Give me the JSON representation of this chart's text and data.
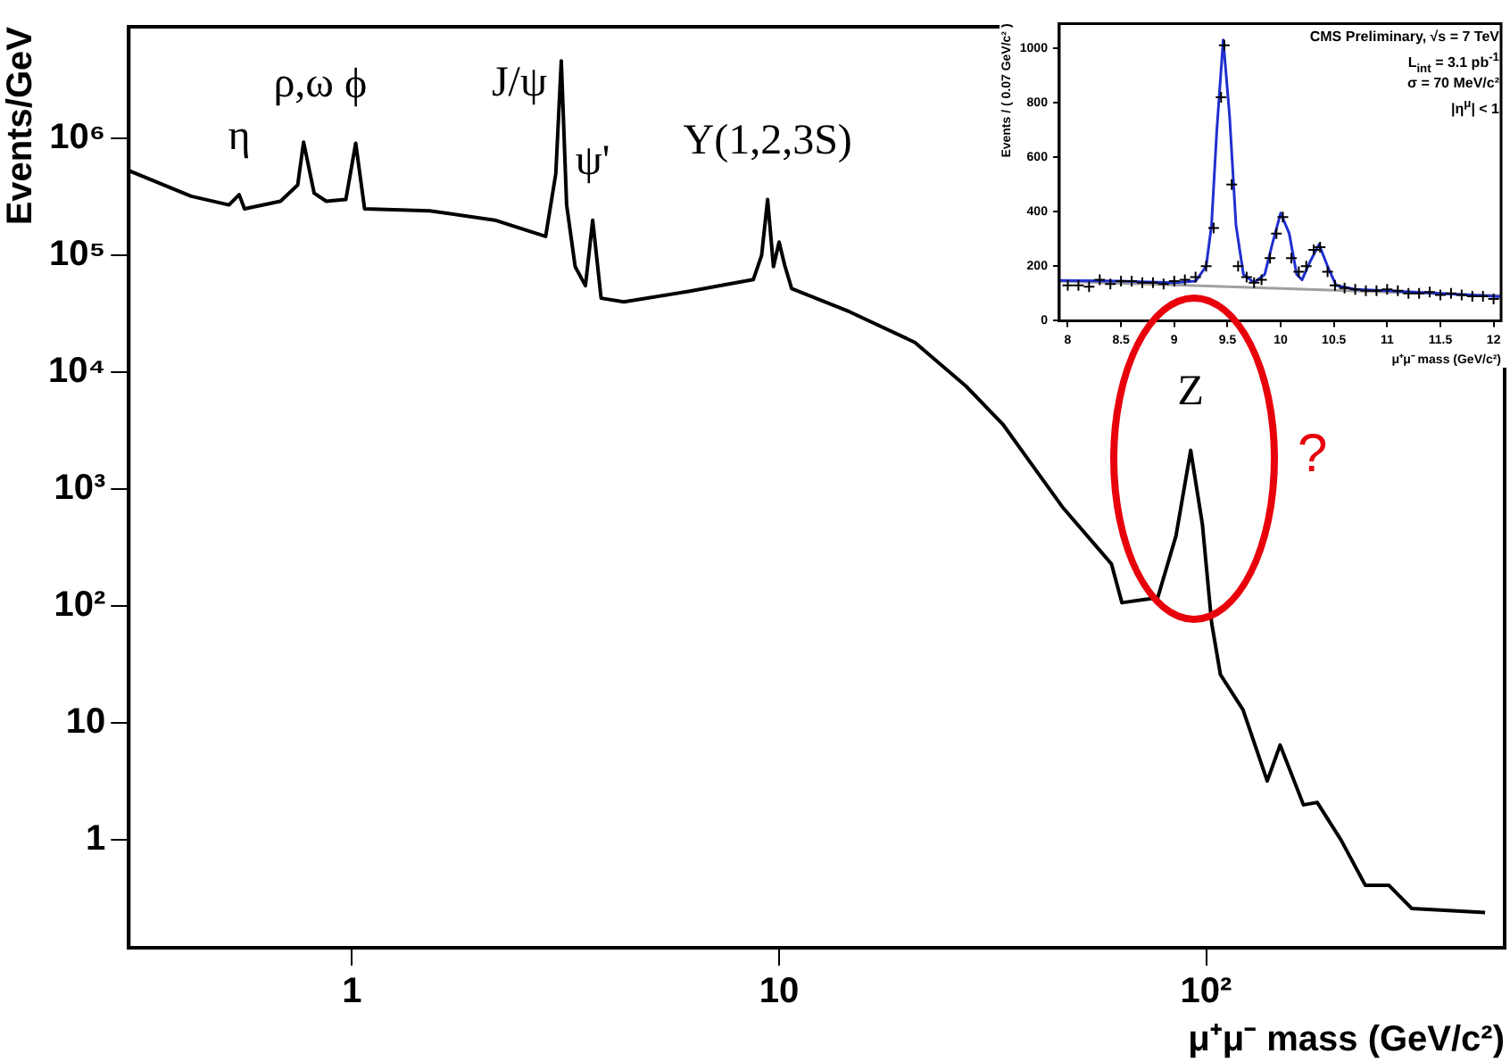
{
  "chart_data": [
    {
      "type": "line",
      "xlabel": "μ⁺μ⁻ mass (GeV/c²)",
      "ylabel": "Events/GeV",
      "log": "xy",
      "xlim": [
        0.3,
        500
      ],
      "ylim": [
        0.12,
        9000000
      ],
      "xticks": [
        1,
        10,
        {
          "value": 100,
          "label": "10²"
        }
      ],
      "yticks": [
        1,
        10,
        {
          "value": 100,
          "label": "10²"
        },
        {
          "value": 1000,
          "label": "10³"
        },
        {
          "value": 10000,
          "label": "10⁴"
        },
        {
          "value": 100000,
          "label": "10⁵"
        },
        {
          "value": 1000000,
          "label": "10⁶"
        }
      ],
      "grid": false,
      "x": [
        0.3,
        0.42,
        0.515,
        0.544,
        0.56,
        0.68,
        0.746,
        0.77,
        0.815,
        0.87,
        0.967,
        1.02,
        1.07,
        1.52,
        2.16,
        2.84,
        3.0,
        3.09,
        3.18,
        3.33,
        3.52,
        3.66,
        3.83,
        4.33,
        6.1,
        8.7,
        9.1,
        9.4,
        9.7,
        10.0,
        10.3,
        10.7,
        14.6,
        20.8,
        27.4,
        33.4,
        46,
        60,
        63.5,
        77,
        85,
        92,
        98,
        103,
        108,
        122,
        139,
        149,
        169,
        182,
        207,
        236,
        268,
        303,
        450
      ],
      "series": [
        {
          "color": "#000000",
          "values": [
            530000,
            320000,
            270000,
            330000,
            250000,
            290000,
            400000,
            930000,
            340000,
            290000,
            300000,
            910000,
            250000,
            240000,
            200000,
            145000,
            500000,
            4600000,
            270000,
            80000,
            55000,
            200000,
            43000,
            40000,
            49000,
            62000,
            100000,
            300000,
            80000,
            130000,
            83000,
            52000,
            33000,
            18000,
            7600,
            3600,
            710,
            230,
            107,
            118,
            400,
            2150,
            500,
            72,
            26,
            13,
            3.2,
            6.5,
            2.0,
            2.1,
            1.0,
            0.41,
            0.41,
            0.26,
            0.24
          ]
        }
      ],
      "annotations": [
        {
          "text": "η",
          "x": 0.544,
          "y": 330000
        },
        {
          "text": "ρ,ω",
          "x": 0.77,
          "y": 930000
        },
        {
          "text": "ϕ",
          "x": 1.02,
          "y": 910000
        },
        {
          "text": "J/ψ",
          "x": 3.09,
          "y": 4600000
        },
        {
          "text": "ψ'",
          "x": 3.66,
          "y": 200000
        },
        {
          "text": "Υ(1,2,3S)",
          "x": 9.4,
          "y": 300000
        },
        {
          "text": "Z",
          "x": 92,
          "y": 2150
        },
        "?"
      ]
    },
    {
      "type": "scatter",
      "xlabel": "μ⁺μ⁻ mass (GeV/c²)",
      "ylabel": "Events / ( 0.07 GeV/c² )",
      "xlim": [
        7.92,
        12.07
      ],
      "ylim": [
        0,
        1090
      ],
      "xticks": [
        8,
        8.5,
        9,
        9.5,
        10,
        10.5,
        11,
        11.5,
        12
      ],
      "yticks": [
        0,
        200,
        400,
        600,
        800,
        1000
      ],
      "grid": false,
      "series": [
        {
          "type": "scatter",
          "marker": "cross",
          "color": "#000000",
          "x": [
            8.0,
            8.1,
            8.2,
            8.3,
            8.4,
            8.5,
            8.6,
            8.7,
            8.8,
            8.9,
            9.0,
            9.1,
            9.2,
            9.3,
            9.37,
            9.44,
            9.47,
            9.54,
            9.6,
            9.68,
            9.75,
            9.82,
            9.9,
            9.96,
            10.02,
            10.1,
            10.17,
            10.24,
            10.31,
            10.37,
            10.44,
            10.51,
            10.6,
            10.7,
            10.8,
            10.9,
            11.0,
            11.1,
            11.2,
            11.3,
            11.4,
            11.5,
            11.6,
            11.7,
            11.8,
            11.9,
            12.0
          ],
          "values": [
            130,
            130,
            125,
            150,
            135,
            145,
            145,
            140,
            140,
            135,
            145,
            150,
            160,
            200,
            340,
            820,
            1010,
            500,
            200,
            160,
            140,
            150,
            230,
            320,
            380,
            230,
            180,
            200,
            260,
            270,
            180,
            130,
            120,
            115,
            110,
            110,
            115,
            110,
            100,
            100,
            105,
            95,
            100,
            95,
            90,
            90,
            80
          ]
        },
        {
          "type": "line",
          "color": "#1f2fcf",
          "x": [
            7.92,
            8.5,
            9.0,
            9.2,
            9.3,
            9.35,
            9.4,
            9.46,
            9.52,
            9.58,
            9.65,
            9.75,
            9.85,
            9.92,
            10.0,
            10.08,
            10.15,
            10.2,
            10.28,
            10.36,
            10.44,
            10.52,
            10.7,
            11.0,
            11.5,
            12.0,
            12.07
          ],
          "values": [
            148,
            145,
            140,
            145,
            200,
            350,
            700,
            1030,
            750,
            350,
            170,
            140,
            170,
            280,
            395,
            320,
            170,
            150,
            220,
            280,
            200,
            130,
            115,
            110,
            100,
            90,
            88
          ]
        },
        {
          "type": "line",
          "color": "#a0a0a0",
          "x": [
            7.92,
            12.07
          ],
          "values": [
            145,
            92
          ]
        }
      ],
      "annotations": [
        "CMS Preliminary, √s = 7 TeV",
        "L$_{int}$ = 3.1 pb$^{-1}$",
        "σ = 70 MeV/c²",
        "|η$^{μ}$| < 1"
      ]
    }
  ]
}
